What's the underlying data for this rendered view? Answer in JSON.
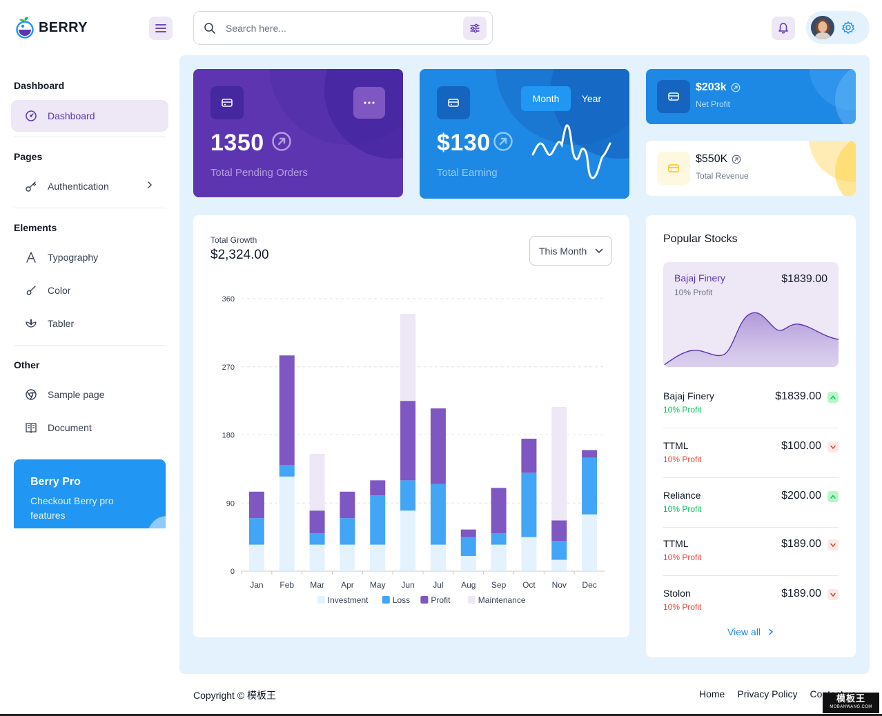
{
  "brand": {
    "name": "BERRY"
  },
  "search": {
    "placeholder": "Search here..."
  },
  "sidebar": {
    "sections": [
      {
        "caption": "Dashboard",
        "items": [
          {
            "label": "Dashboard",
            "icon": "dashboard-icon",
            "active": true
          }
        ]
      },
      {
        "caption": "Pages",
        "items": [
          {
            "label": "Authentication",
            "icon": "key-icon",
            "has_children": true
          }
        ]
      },
      {
        "caption": "Elements",
        "items": [
          {
            "label": "Typography",
            "icon": "typography-icon"
          },
          {
            "label": "Color",
            "icon": "palette-icon"
          },
          {
            "label": "Tabler",
            "icon": "windmill-icon"
          }
        ]
      },
      {
        "caption": "Other",
        "items": [
          {
            "label": "Sample page",
            "icon": "brand-chrome-icon"
          },
          {
            "label": "Document",
            "icon": "book-icon"
          }
        ]
      }
    ],
    "pro_card": {
      "title": "Berry Pro",
      "description": "Checkout Berry pro features"
    }
  },
  "cards": {
    "orders": {
      "value": "1350",
      "label": "Total Pending Orders"
    },
    "earning": {
      "value": "$130",
      "label": "Total Earning",
      "toggle": [
        "Month",
        "Year"
      ],
      "toggle_selected": "Month"
    },
    "net_profit": {
      "value": "$203k",
      "label": "Net Profit"
    },
    "revenue": {
      "value": "$550K",
      "label": "Total Revenue"
    }
  },
  "growth": {
    "label": "Total Growth",
    "value": "$2,324.00",
    "period": "This Month"
  },
  "chart_data": {
    "type": "bar",
    "stacked": true,
    "categories": [
      "Jan",
      "Feb",
      "Mar",
      "Apr",
      "May",
      "Jun",
      "Jul",
      "Aug",
      "Sep",
      "Oct",
      "Nov",
      "Dec"
    ],
    "series": [
      {
        "name": "Investment",
        "color": "#e3f2fd",
        "values": [
          35,
          125,
          35,
          35,
          35,
          80,
          35,
          20,
          35,
          45,
          15,
          75
        ]
      },
      {
        "name": "Loss",
        "color": "#42a5f5",
        "values": [
          35,
          15,
          15,
          35,
          65,
          40,
          80,
          25,
          15,
          85,
          25,
          75
        ]
      },
      {
        "name": "Profit",
        "color": "#7e57c2",
        "values": [
          35,
          145,
          30,
          35,
          20,
          105,
          100,
          10,
          60,
          45,
          27,
          10
        ]
      },
      {
        "name": "Maintenance",
        "color": "#ede7f6",
        "values": [
          0,
          0,
          75,
          0,
          0,
          115,
          0,
          0,
          0,
          0,
          150,
          0
        ]
      }
    ],
    "yticks": [
      0,
      90,
      180,
      270,
      360
    ],
    "ylim": [
      0,
      360
    ],
    "grid": true,
    "legend": "bottom"
  },
  "stocks": {
    "title": "Popular Stocks",
    "featured": {
      "name": "Bajaj Finery",
      "profit": "10% Profit",
      "price": "$1839.00"
    },
    "items": [
      {
        "name": "Bajaj Finery",
        "profit": "10% Profit",
        "price": "$1839.00",
        "trend": "up"
      },
      {
        "name": "TTML",
        "profit": "10% Profit",
        "price": "$100.00",
        "trend": "down"
      },
      {
        "name": "Reliance",
        "profit": "10% Profit",
        "price": "$200.00",
        "trend": "up"
      },
      {
        "name": "TTML",
        "profit": "10% Profit",
        "price": "$189.00",
        "trend": "down"
      },
      {
        "name": "Stolon",
        "profit": "10% Profit",
        "price": "$189.00",
        "trend": "down"
      }
    ],
    "view_all": "View all"
  },
  "footer": {
    "copyright": "Copyright © 模板王",
    "links": [
      "Home",
      "Privacy Policy",
      "Contact us"
    ]
  },
  "watermark": {
    "title": "模板王",
    "subtitle": "MOBANWANG.COM"
  },
  "colors": {
    "primary": "#2196f3",
    "secondary": "#5e35b1",
    "success": "#00c853",
    "error": "#f44336",
    "warning": "#ffc107"
  }
}
